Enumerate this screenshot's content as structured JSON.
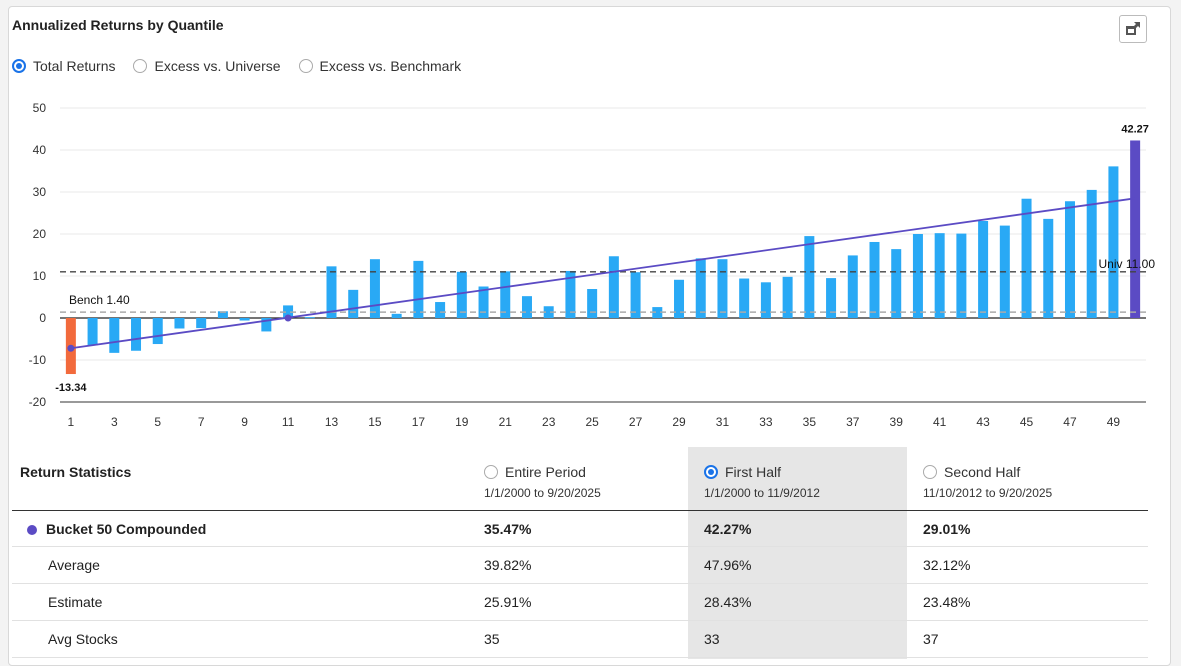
{
  "title": "Annualized Returns by Quantile",
  "export_icon": "export-image-icon",
  "radios": [
    {
      "label": "Total Returns",
      "selected": true
    },
    {
      "label": "Excess vs. Universe",
      "selected": false
    },
    {
      "label": "Excess vs. Benchmark",
      "selected": false
    }
  ],
  "chart_data": {
    "type": "bar",
    "categories": [
      1,
      2,
      3,
      4,
      5,
      6,
      7,
      8,
      9,
      10,
      11,
      12,
      13,
      14,
      15,
      16,
      17,
      18,
      19,
      20,
      21,
      22,
      23,
      24,
      25,
      26,
      27,
      28,
      29,
      30,
      31,
      32,
      33,
      34,
      35,
      36,
      37,
      38,
      39,
      40,
      41,
      42,
      43,
      44,
      45,
      46,
      47,
      48,
      49,
      50
    ],
    "x_tick_labels": [
      "1",
      "3",
      "5",
      "7",
      "9",
      "11",
      "13",
      "15",
      "17",
      "19",
      "21",
      "23",
      "25",
      "27",
      "29",
      "31",
      "33",
      "35",
      "37",
      "39",
      "41",
      "43",
      "45",
      "47",
      "49"
    ],
    "values": [
      -13.34,
      -6.5,
      -8.3,
      -7.8,
      -6.2,
      -2.5,
      -2.4,
      1.6,
      -0.6,
      -3.2,
      3.0,
      0.2,
      12.3,
      6.7,
      14.0,
      1.0,
      13.6,
      3.8,
      11.0,
      7.5,
      11.1,
      5.2,
      2.8,
      11.2,
      6.9,
      14.7,
      10.9,
      2.6,
      9.1,
      14.2,
      14.0,
      9.4,
      8.5,
      9.8,
      19.5,
      9.5,
      14.9,
      18.1,
      16.4,
      20.0,
      20.2,
      20.1,
      23.1,
      22.0,
      28.4,
      23.6,
      27.8,
      30.5,
      36.1,
      42.27
    ],
    "ylim": [
      -20,
      50
    ],
    "yticks": [
      -20,
      -10,
      0,
      10,
      20,
      30,
      40,
      50
    ],
    "reference_lines": [
      {
        "label": "Bench 1.40",
        "value": 1.4
      },
      {
        "label": "Univ 11.00",
        "value": 11.0
      }
    ],
    "trend_line": {
      "start_value": -7.2,
      "end_value": 28.5
    },
    "trend_markers": [
      {
        "x": 1,
        "value": -7.2
      },
      {
        "x": 11,
        "value": 0.0
      }
    ],
    "data_labels": [
      {
        "x": 1,
        "text": "-13.34"
      },
      {
        "x": 50,
        "text": "42.27"
      }
    ],
    "colors": {
      "bar": "#29a9f5",
      "low": "#f26a3c",
      "high": "#5b4bc4",
      "trend": "#5b4bc4",
      "grid": "#e8e8e8"
    }
  },
  "stats": {
    "title": "Return Statistics",
    "columns": [
      {
        "label": "Entire Period",
        "range": "1/1/2000 to 9/20/2025",
        "selected": false
      },
      {
        "label": "First Half",
        "range": "1/1/2000 to 11/9/2012",
        "selected": true
      },
      {
        "label": "Second Half",
        "range": "11/10/2012 to 9/20/2025",
        "selected": false
      }
    ],
    "rows": [
      {
        "label": "Bucket 50 Compounded",
        "values": [
          "35.47%",
          "42.27%",
          "29.01%"
        ],
        "bold": true
      },
      {
        "label": "Average",
        "values": [
          "39.82%",
          "47.96%",
          "32.12%"
        ],
        "bold": false
      },
      {
        "label": "Estimate",
        "values": [
          "25.91%",
          "28.43%",
          "23.48%"
        ],
        "bold": false
      },
      {
        "label": "Avg Stocks",
        "values": [
          "35",
          "33",
          "37"
        ],
        "bold": false
      }
    ]
  }
}
